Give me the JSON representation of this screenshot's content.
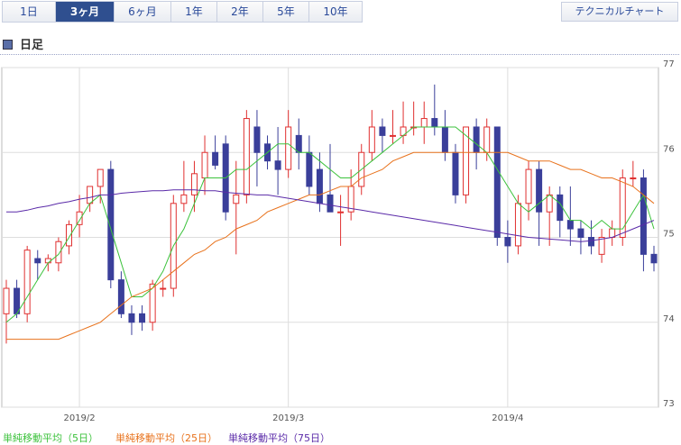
{
  "tabs": [
    "1日",
    "3ヶ月",
    "6ヶ月",
    "1年",
    "2年",
    "5年",
    "10年"
  ],
  "selected_tab": 1,
  "button": "テクニカルチャート",
  "section": "日足",
  "chart_data": {
    "type": "candlestick",
    "categories": [
      null,
      null,
      null,
      null,
      null,
      null,
      null,
      "2019/2",
      null,
      null,
      null,
      null,
      null,
      null,
      null,
      null,
      null,
      null,
      null,
      null,
      null,
      null,
      null,
      null,
      null,
      null,
      null,
      "2019/3",
      null,
      null,
      null,
      null,
      null,
      null,
      null,
      null,
      null,
      null,
      null,
      null,
      null,
      null,
      null,
      null,
      null,
      null,
      null,
      null,
      "2019/4",
      null,
      null,
      null,
      null,
      null,
      null,
      null,
      null,
      null,
      null,
      null,
      null,
      null,
      null
    ],
    "open": [
      74.1,
      74.4,
      74.1,
      74.75,
      74.7,
      74.7,
      74.9,
      75.15,
      75.4,
      75.6,
      75.8,
      74.5,
      74.1,
      74.1,
      74.0,
      74.4,
      74.4,
      75.4,
      75.5,
      75.7,
      76.0,
      76.1,
      75.4,
      75.5,
      76.3,
      76.1,
      75.9,
      75.8,
      76.2,
      76.0,
      75.8,
      75.5,
      75.3,
      75.3,
      75.6,
      76.0,
      76.3,
      76.2,
      76.2,
      76.3,
      76.3,
      76.4,
      76.3,
      76.0,
      75.5,
      76.3,
      76.0,
      76.3,
      75.0,
      74.9,
      75.4,
      75.8,
      75.3,
      75.5,
      75.2,
      75.1,
      75.0,
      74.8,
      75.0,
      75.0,
      75.7,
      75.7,
      74.8
    ],
    "high": [
      74.5,
      74.5,
      74.9,
      74.85,
      74.8,
      75.0,
      75.2,
      75.5,
      75.6,
      75.8,
      75.9,
      74.6,
      74.2,
      74.2,
      74.5,
      74.5,
      75.5,
      75.9,
      75.9,
      76.2,
      76.2,
      76.2,
      75.9,
      76.5,
      76.5,
      76.2,
      76.3,
      76.5,
      76.4,
      76.2,
      76.0,
      76.1,
      75.5,
      75.8,
      76.1,
      76.5,
      76.4,
      76.5,
      76.6,
      76.6,
      76.6,
      76.8,
      76.5,
      76.1,
      76.3,
      76.4,
      76.4,
      76.3,
      75.2,
      75.5,
      75.9,
      75.9,
      75.6,
      75.6,
      75.6,
      75.2,
      75.2,
      75.1,
      75.2,
      75.8,
      75.9,
      75.8,
      74.9
    ],
    "low": [
      73.75,
      74.05,
      74.0,
      74.5,
      74.6,
      74.6,
      74.8,
      75.0,
      75.3,
      75.4,
      74.4,
      74.05,
      73.85,
      73.9,
      73.9,
      74.3,
      74.3,
      75.3,
      75.3,
      75.5,
      75.8,
      75.2,
      74.8,
      75.4,
      75.6,
      75.8,
      75.5,
      75.7,
      75.8,
      75.5,
      75.3,
      75.3,
      74.9,
      75.2,
      75.5,
      75.9,
      76.0,
      76.1,
      76.1,
      76.2,
      76.1,
      76.2,
      75.9,
      75.4,
      75.4,
      75.8,
      75.9,
      74.9,
      74.7,
      74.8,
      75.2,
      74.9,
      74.9,
      75.0,
      74.9,
      74.8,
      74.8,
      74.7,
      74.9,
      74.9,
      75.6,
      74.6,
      74.6
    ],
    "close": [
      74.4,
      74.1,
      74.85,
      74.7,
      74.75,
      74.95,
      75.15,
      75.3,
      75.6,
      75.8,
      74.5,
      74.1,
      74.0,
      74.0,
      74.45,
      74.4,
      75.4,
      75.5,
      75.75,
      76.0,
      75.85,
      75.3,
      75.5,
      76.4,
      76.0,
      75.9,
      75.8,
      76.3,
      76.0,
      75.6,
      75.4,
      75.3,
      75.3,
      75.6,
      76.0,
      76.3,
      76.2,
      76.2,
      76.3,
      76.3,
      76.4,
      76.3,
      76.0,
      75.5,
      76.3,
      76.0,
      76.3,
      75.0,
      74.9,
      75.4,
      75.8,
      75.3,
      75.5,
      75.2,
      75.1,
      75.0,
      74.9,
      75.0,
      75.1,
      75.7,
      75.7,
      74.8,
      74.7
    ],
    "up_color": "#e03030",
    "down_color": "#3a3f9a",
    "series": [
      {
        "name": "単純移動平均（5日）",
        "color": "#3cc23c",
        "values": [
          74.0,
          74.1,
          74.3,
          74.5,
          74.7,
          74.8,
          75.0,
          75.2,
          75.4,
          75.5,
          75.1,
          74.7,
          74.3,
          74.3,
          74.4,
          74.6,
          74.9,
          75.1,
          75.4,
          75.7,
          75.7,
          75.7,
          75.8,
          75.8,
          75.9,
          76.0,
          76.1,
          76.1,
          76.0,
          76.0,
          75.9,
          75.8,
          75.7,
          75.7,
          75.8,
          75.9,
          76.0,
          76.1,
          76.2,
          76.3,
          76.3,
          76.3,
          76.3,
          76.3,
          76.2,
          76.1,
          76.0,
          75.8,
          75.6,
          75.4,
          75.3,
          75.4,
          75.5,
          75.4,
          75.2,
          75.2,
          75.1,
          75.2,
          75.1,
          75.1,
          75.3,
          75.5,
          75.1
        ]
      },
      {
        "name": "単純移動平均（25日）",
        "color": "#e8721c",
        "values": [
          73.8,
          73.8,
          73.8,
          73.8,
          73.8,
          73.8,
          73.85,
          73.9,
          73.95,
          74.0,
          74.1,
          74.2,
          74.3,
          74.35,
          74.4,
          74.5,
          74.6,
          74.7,
          74.8,
          74.85,
          74.95,
          75.0,
          75.1,
          75.15,
          75.2,
          75.3,
          75.35,
          75.4,
          75.45,
          75.5,
          75.5,
          75.55,
          75.6,
          75.6,
          75.7,
          75.75,
          75.8,
          75.9,
          75.95,
          76.0,
          76.0,
          76.0,
          76.0,
          76.0,
          76.0,
          76.0,
          76.0,
          76.0,
          76.0,
          75.95,
          75.9,
          75.9,
          75.9,
          75.85,
          75.8,
          75.8,
          75.75,
          75.7,
          75.7,
          75.65,
          75.6,
          75.5,
          75.4
        ]
      },
      {
        "name": "単純移動平均（75日）",
        "color": "#5a2aa8",
        "values": [
          75.3,
          75.3,
          75.32,
          75.35,
          75.37,
          75.4,
          75.42,
          75.45,
          75.47,
          75.5,
          75.5,
          75.52,
          75.53,
          75.54,
          75.55,
          75.55,
          75.56,
          75.56,
          75.56,
          75.55,
          75.55,
          75.53,
          75.52,
          75.51,
          75.5,
          75.5,
          75.48,
          75.46,
          75.44,
          75.42,
          75.4,
          75.38,
          75.36,
          75.34,
          75.32,
          75.3,
          75.28,
          75.26,
          75.24,
          75.22,
          75.2,
          75.18,
          75.16,
          75.14,
          75.12,
          75.1,
          75.08,
          75.06,
          75.04,
          75.02,
          75.0,
          74.99,
          74.98,
          74.97,
          74.96,
          74.95,
          74.96,
          74.98,
          75.0,
          75.05,
          75.1,
          75.15,
          75.2
        ]
      }
    ],
    "ylim": [
      73,
      77
    ],
    "yticks": [
      73,
      74,
      75,
      76,
      77
    ],
    "grid": true
  }
}
